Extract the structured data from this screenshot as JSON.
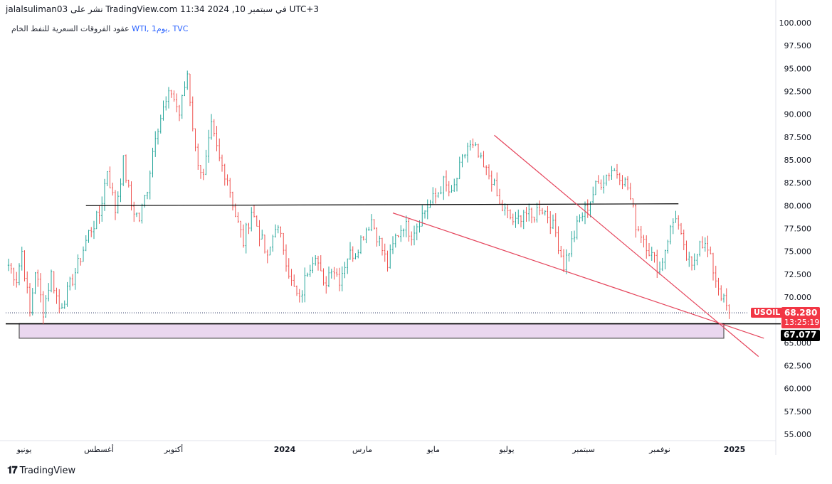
{
  "header": {
    "text": "jalalsuliman03 نشر على TradingView.com 11:34 2024 ,10 في سبتمبر UTC+3",
    "symbol_prefix": "عقود الفروقات السعرية للنفط الخام ",
    "symbol": "WTI, 1يوم, TVC"
  },
  "badges": {
    "ticker": "USOIL",
    "price": "68.280",
    "countdown": "13:25:19",
    "level": "67.077"
  },
  "footer": {
    "logo_text": "TradingView"
  },
  "colors": {
    "up": "#26a69a",
    "down": "#ef5350",
    "trendline": "#e5455c",
    "zone_fill": "#ead7ef",
    "horizontal": "#000000"
  },
  "chart_data": {
    "type": "candlestick",
    "title": "عقود الفروقات السعرية للنفط الخام WTI, 1يوم, TVC",
    "ylim": [
      53.5,
      101
    ],
    "y_ticks": [
      "100.000",
      "97.500",
      "95.000",
      "92.500",
      "90.000",
      "87.500",
      "85.000",
      "82.500",
      "80.000",
      "77.500",
      "75.000",
      "72.500",
      "70.000",
      "67.500",
      "65.000",
      "62.500",
      "60.000",
      "57.500",
      "55.000"
    ],
    "x_ticks": [
      "يونيو",
      "أغسطس",
      "أكتوبر",
      "2024",
      "مارس",
      "مايو",
      "يوليو",
      "سبتمبر",
      "نوفمبر",
      "2025"
    ],
    "x_ticks_bold": [
      "2024",
      "2025"
    ],
    "last_price": 68.28,
    "support_zone": [
      65.5,
      67.1
    ],
    "resistance_line": 80.0,
    "price_path": [
      [
        0,
        73.5
      ],
      [
        3,
        72.0
      ],
      [
        5,
        75.0
      ],
      [
        8,
        68.2
      ],
      [
        10,
        73.0
      ],
      [
        13,
        68.5
      ],
      [
        16,
        72.5
      ],
      [
        19,
        68.8
      ],
      [
        22,
        70.5
      ],
      [
        26,
        73.5
      ],
      [
        30,
        77.0
      ],
      [
        34,
        79.0
      ],
      [
        37,
        84.0
      ],
      [
        40,
        79.5
      ],
      [
        43,
        84.8
      ],
      [
        46,
        80.0
      ],
      [
        49,
        78.5
      ],
      [
        52,
        82.0
      ],
      [
        55,
        88.0
      ],
      [
        58,
        90.5
      ],
      [
        61,
        92.5
      ],
      [
        64,
        90.0
      ],
      [
        67,
        94.5
      ],
      [
        70,
        86.0
      ],
      [
        73,
        83.0
      ],
      [
        76,
        88.5
      ],
      [
        79,
        85.0
      ],
      [
        82,
        83.0
      ],
      [
        85,
        79.0
      ],
      [
        88,
        76.0
      ],
      [
        91,
        79.5
      ],
      [
        94,
        77.0
      ],
      [
        97,
        74.0
      ],
      [
        100,
        78.0
      ],
      [
        103,
        75.5
      ],
      [
        106,
        71.5
      ],
      [
        109,
        69.5
      ],
      [
        112,
        73.0
      ],
      [
        115,
        75.0
      ],
      [
        118,
        71.0
      ],
      [
        121,
        73.5
      ],
      [
        124,
        72.0
      ],
      [
        127,
        74.5
      ],
      [
        130,
        75.0
      ],
      [
        133,
        77.0
      ],
      [
        136,
        78.5
      ],
      [
        139,
        76.0
      ],
      [
        142,
        73.5
      ],
      [
        145,
        76.5
      ],
      [
        148,
        78.0
      ],
      [
        151,
        77.0
      ],
      [
        154,
        78.5
      ],
      [
        157,
        80.0
      ],
      [
        160,
        81.0
      ],
      [
        163,
        82.5
      ],
      [
        166,
        81.0
      ],
      [
        169,
        84.0
      ],
      [
        172,
        86.5
      ],
      [
        175,
        86.0
      ],
      [
        178,
        84.0
      ],
      [
        181,
        83.0
      ],
      [
        184,
        80.0
      ],
      [
        187,
        79.0
      ],
      [
        190,
        78.0
      ],
      [
        193,
        79.5
      ],
      [
        196,
        78.5
      ],
      [
        199,
        80.0
      ],
      [
        202,
        79.0
      ],
      [
        205,
        77.0
      ],
      [
        208,
        73.5
      ],
      [
        211,
        76.0
      ],
      [
        214,
        78.5
      ],
      [
        217,
        80.0
      ],
      [
        220,
        82.0
      ],
      [
        223,
        83.0
      ],
      [
        226,
        84.0
      ],
      [
        229,
        83.5
      ],
      [
        232,
        82.0
      ],
      [
        235,
        78.0
      ],
      [
        238,
        76.5
      ],
      [
        241,
        74.5
      ],
      [
        244,
        73.0
      ],
      [
        247,
        76.5
      ],
      [
        250,
        79.0
      ],
      [
        253,
        75.0
      ],
      [
        256,
        73.0
      ],
      [
        259,
        76.5
      ],
      [
        262,
        75.0
      ],
      [
        265,
        72.0
      ],
      [
        268,
        69.5
      ],
      [
        270,
        68.28
      ]
    ],
    "lines": [
      {
        "name": "horizontal",
        "from": [
          29,
          80.0
        ],
        "to": [
          251,
          80.2
        ]
      },
      {
        "name": "trend-upper",
        "from": [
          182,
          87.7
        ],
        "to": [
          281,
          63.5
        ]
      },
      {
        "name": "trend-lower",
        "from": [
          144,
          79.2
        ],
        "to": [
          283,
          65.5
        ]
      }
    ]
  }
}
